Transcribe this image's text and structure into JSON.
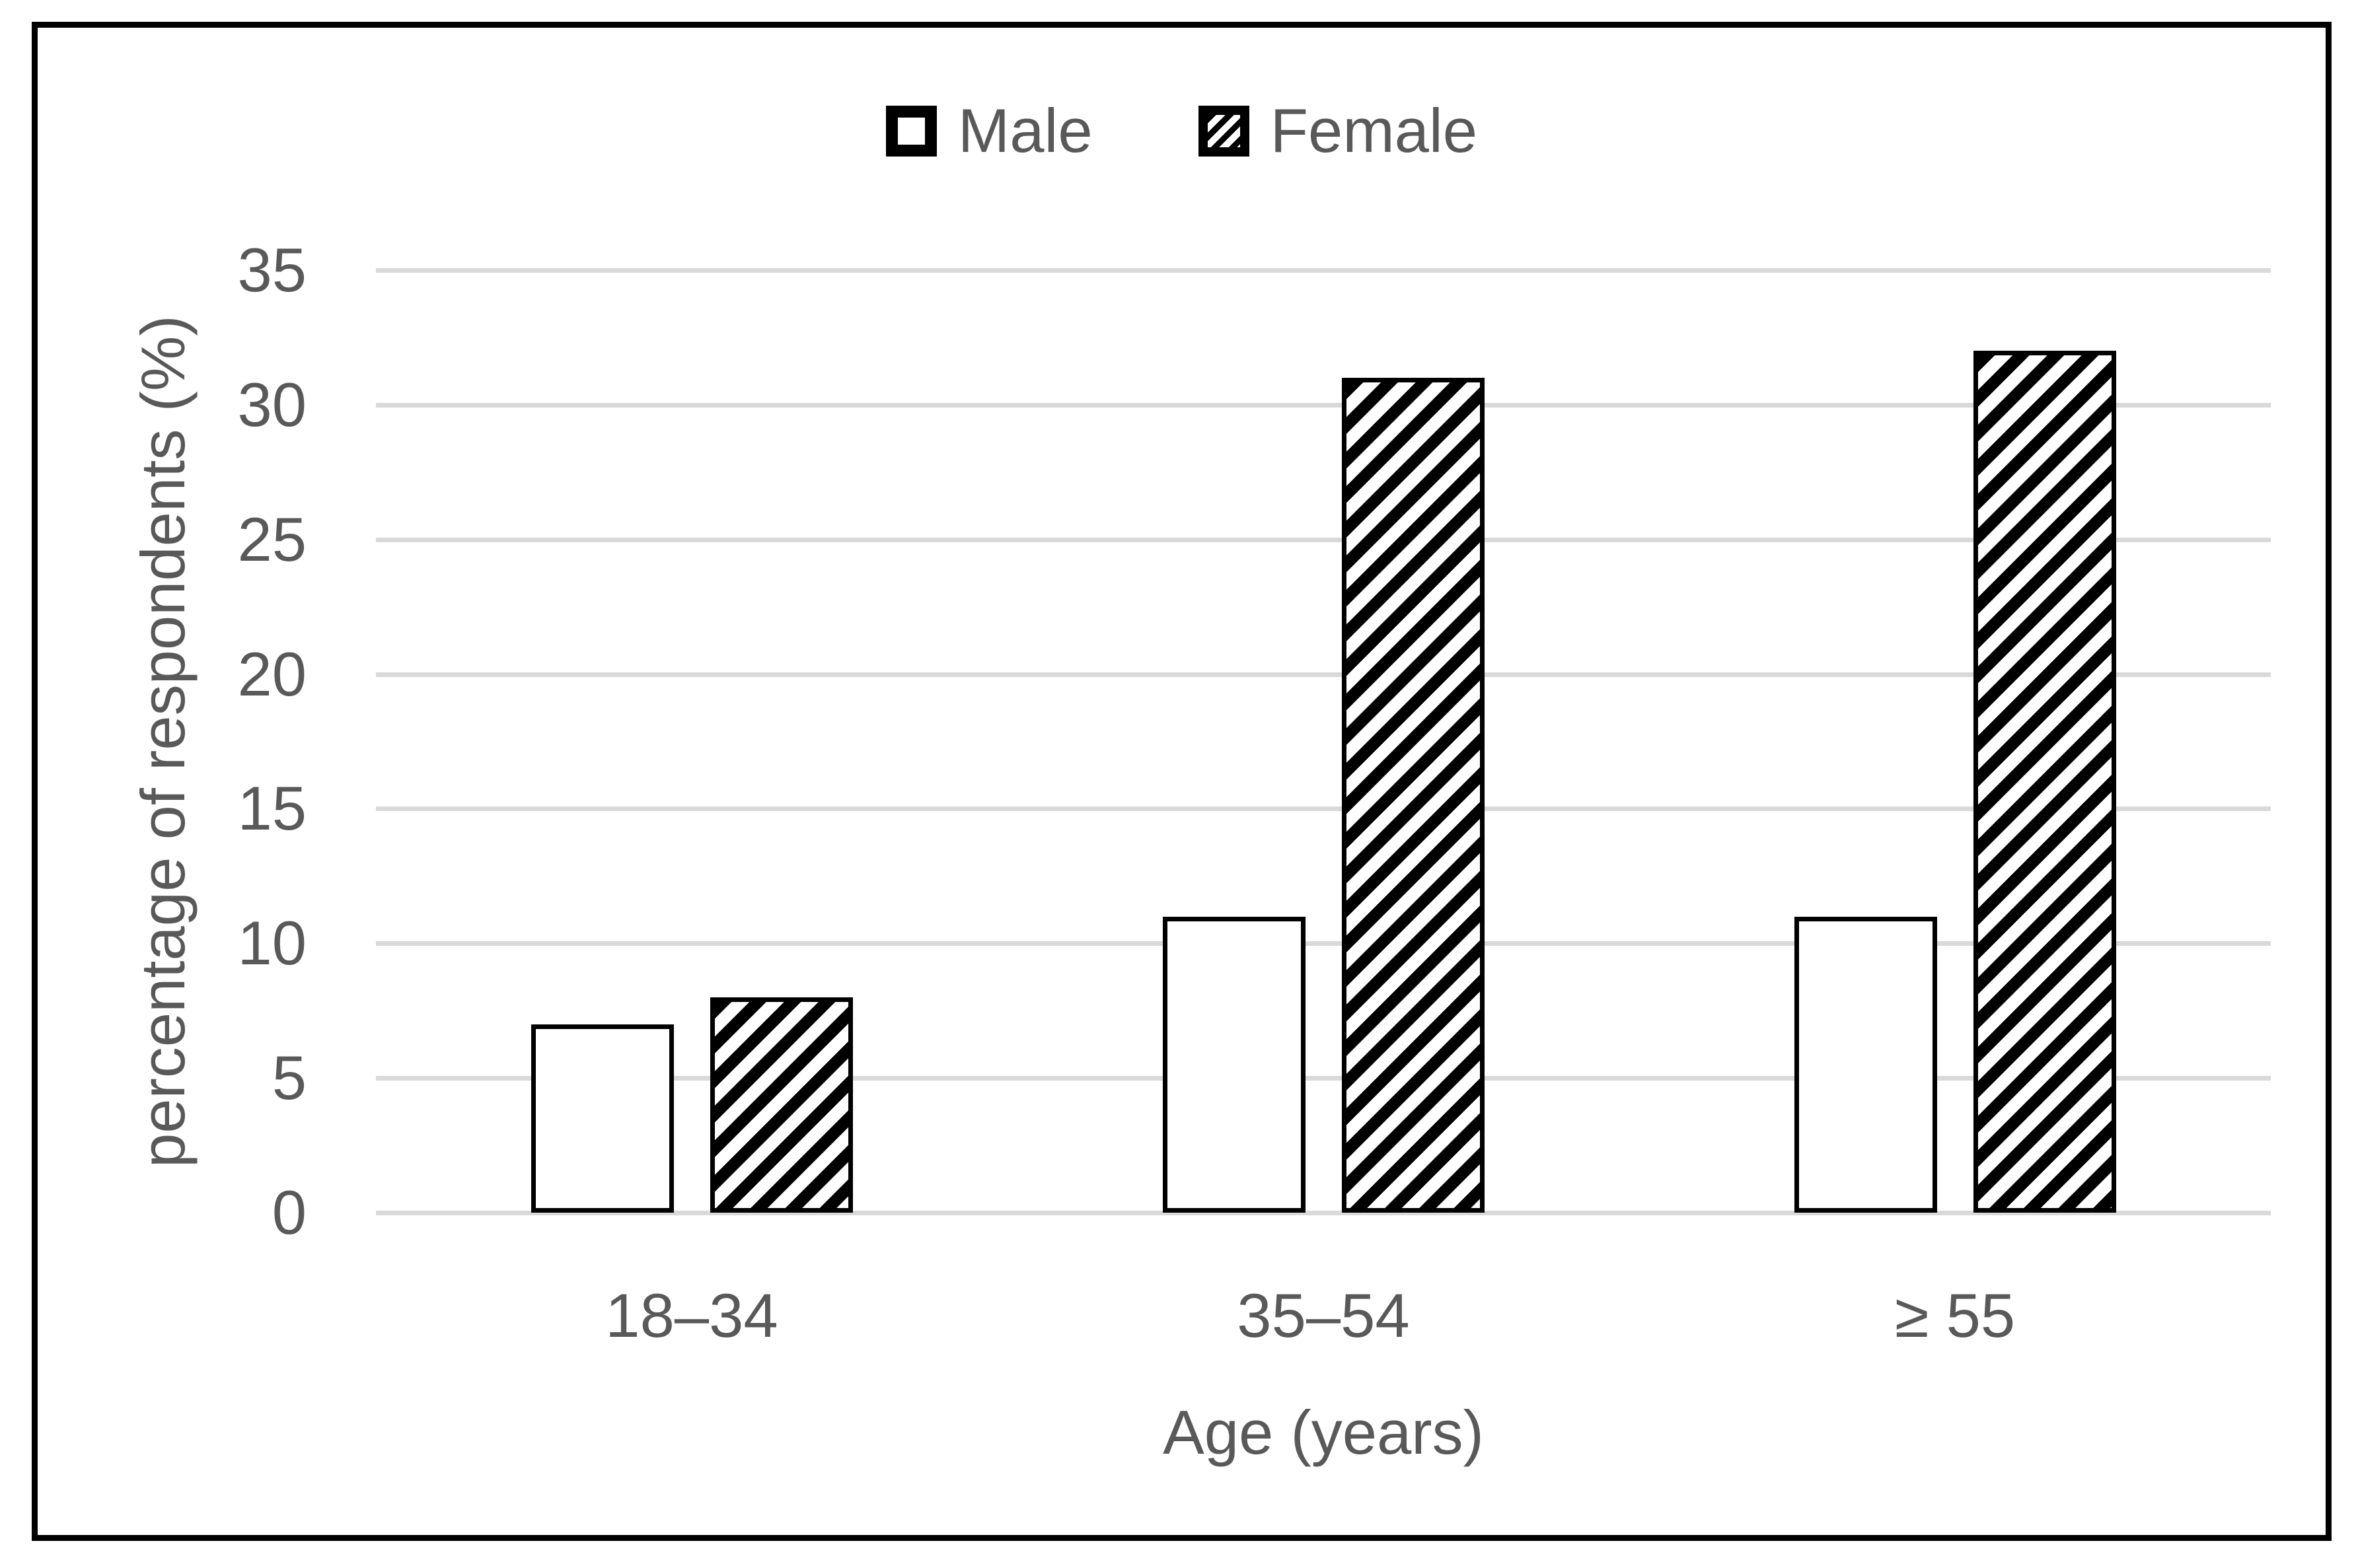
{
  "legend": {
    "items": [
      {
        "label": "Male",
        "swatch": "plain-white-square"
      },
      {
        "label": "Female",
        "swatch": "diagonal-hatch-square"
      }
    ]
  },
  "chart_data": {
    "type": "bar",
    "categories": [
      "18–34",
      "35–54",
      "≥ 55"
    ],
    "series": [
      {
        "name": "Male",
        "pattern": "plain",
        "values": [
          7,
          11,
          11
        ]
      },
      {
        "name": "Female",
        "pattern": "diagonal-hatch",
        "values": [
          8,
          31,
          32
        ]
      }
    ],
    "title": "",
    "xlabel": "Age (years)",
    "ylabel": "percentage of respondents (%)",
    "ylim": [
      0,
      35
    ],
    "yticks": [
      0,
      5,
      10,
      15,
      20,
      25,
      30,
      35
    ],
    "grid": "horizontal-only",
    "legend_position": "top-center",
    "colors": {
      "text": "#595959",
      "gridline": "#d9d9d9",
      "bar_fill": "#ffffff",
      "bar_border": "#000000",
      "frame_border": "#000000",
      "background": "#ffffff"
    }
  }
}
